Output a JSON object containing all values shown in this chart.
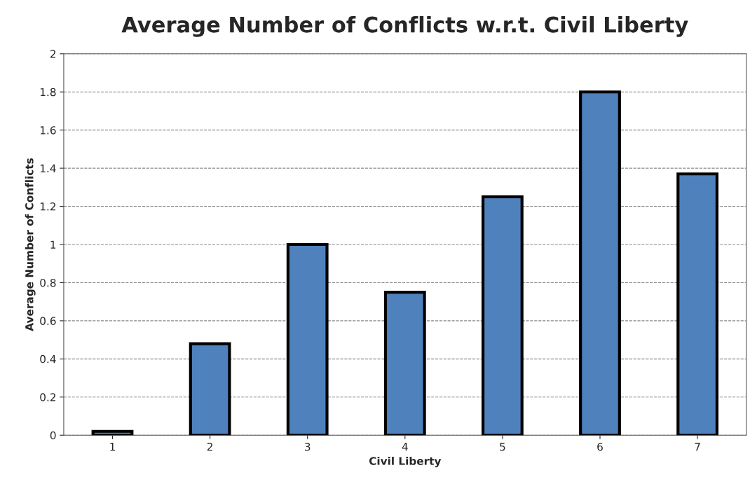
{
  "chart_data": {
    "type": "bar",
    "title": "Average Number of Conflicts w.r.t. Civil Liberty",
    "xlabel": "Civil Liberty",
    "ylabel": "Average Number of Conflicts",
    "categories": [
      "1",
      "2",
      "3",
      "4",
      "5",
      "6",
      "7"
    ],
    "values": [
      0.02,
      0.48,
      1.0,
      0.75,
      1.25,
      1.8,
      1.37
    ],
    "color": "#4f81bd",
    "ylim": [
      0,
      2
    ],
    "yticks": [
      0,
      {
        "value": 0.2,
        "label": "0.2"
      },
      {
        "value": 0.4,
        "label": "0.4"
      },
      {
        "value": 0.6,
        "label": "0.6"
      },
      {
        "value": 0.8,
        "label": "0.8"
      },
      1,
      {
        "value": 1.2,
        "label": "1.2"
      },
      {
        "value": 1.4,
        "label": "1.4"
      },
      {
        "value": 1.6,
        "label": "1.6"
      },
      {
        "value": 1.8,
        "label": "1.8"
      },
      2
    ],
    "grid": "y",
    "legend": false
  }
}
